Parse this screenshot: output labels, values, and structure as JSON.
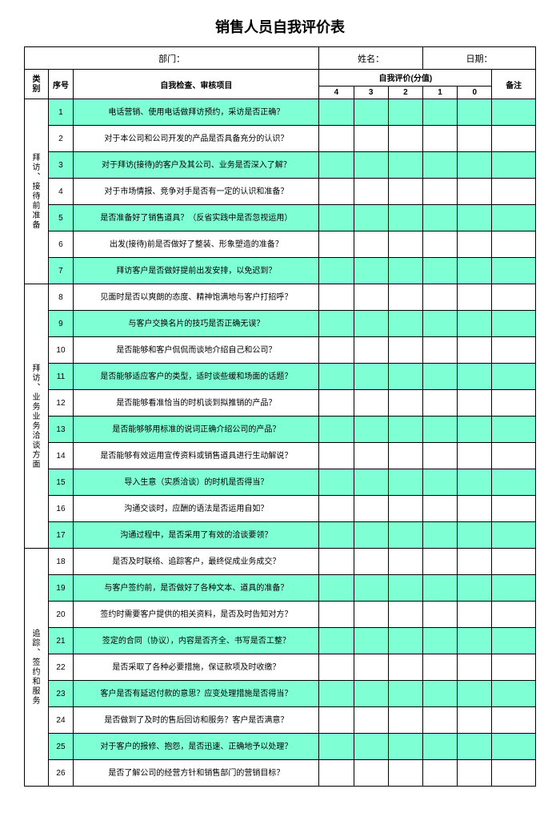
{
  "title": "销售人员自我评价表",
  "header": {
    "dept_label": "部门：",
    "name_label": "姓名：",
    "date_label": "日期："
  },
  "columns": {
    "category": "类别",
    "seq": "序号",
    "item": "自我检查、审核项目",
    "eval_header": "自我评价(分值)",
    "scores": [
      "4",
      "3",
      "2",
      "1",
      "0"
    ],
    "remark": "备注"
  },
  "colors": {
    "highlight": "#7fffd4",
    "border": "#000000",
    "background": "#ffffff"
  },
  "sections": [
    {
      "category": "拜访、接待前准备",
      "rows": [
        {
          "n": "1",
          "text": "电话营销、使用电话做拜访预约，采访是否正确？",
          "hl": true
        },
        {
          "n": "2",
          "text": "对于本公司和公司开发的产品是否具备充分的认识？",
          "hl": false
        },
        {
          "n": "3",
          "text": "对于拜访(接待)的客户及其公司、业务是否深入了解？",
          "hl": true
        },
        {
          "n": "4",
          "text": "对于市场情报、竞争对手是否有一定的认识和准备？",
          "hl": false
        },
        {
          "n": "5",
          "text": "是否准备好了销售道具？（反省实践中是否忽视运用）",
          "hl": true
        },
        {
          "n": "6",
          "text": "出发(接待)前是否做好了整装、形象塑造的准备？",
          "hl": false
        },
        {
          "n": "7",
          "text": "拜访客户是否做好提前出发安排，以免迟到？",
          "hl": true
        }
      ]
    },
    {
      "category": "拜访、业务业务洽谈方面",
      "rows": [
        {
          "n": "8",
          "text": "见面时是否以爽朗的态度、精神饱满地与客户打招呼？",
          "hl": false
        },
        {
          "n": "9",
          "text": "与客户交换名片的技巧是否正确无误？",
          "hl": true
        },
        {
          "n": "10",
          "text": "是否能够和客户侃侃而谈地介绍自己和公司？",
          "hl": false
        },
        {
          "n": "11",
          "text": "是否能够适应客户的类型，适时谈些缓和场面的话题？",
          "hl": true
        },
        {
          "n": "12",
          "text": "是否能够看准恰当的时机谈到拟推销的产品？",
          "hl": false
        },
        {
          "n": "13",
          "text": "是否能够够用标准的说词正确介绍公司的产品？",
          "hl": true
        },
        {
          "n": "14",
          "text": "是否能够有效运用宣传资料或销售道具进行生动解说？",
          "hl": false
        },
        {
          "n": "15",
          "text": "导入生意（实质洽谈）的时机是否得当？",
          "hl": true
        },
        {
          "n": "16",
          "text": "沟通交谈时，应酬的语法是否运用自如？",
          "hl": false
        },
        {
          "n": "17",
          "text": "沟通过程中，是否采用了有效的洽谈要领？",
          "hl": true
        }
      ]
    },
    {
      "category": "追踪、签约和服务",
      "rows": [
        {
          "n": "18",
          "text": "是否及时联络、追踪客户，最终促成业务成交？",
          "hl": false
        },
        {
          "n": "19",
          "text": "与客户签约前，是否做好了各种文本、道具的准备？",
          "hl": true
        },
        {
          "n": "20",
          "text": "签约时需要客户提供的相关资料，是否及时告知对方？",
          "hl": false
        },
        {
          "n": "21",
          "text": "签定的合同（协议），内容是否齐全、书写是否工整？",
          "hl": true
        },
        {
          "n": "22",
          "text": "是否采取了各种必要措施，保证款项及时收缴？",
          "hl": false
        },
        {
          "n": "23",
          "text": "客户是否有延迟付款的意思？应变处理措施是否得当？",
          "hl": true
        },
        {
          "n": "24",
          "text": "是否做到了及时的售后回访和服务？客户是否满意？",
          "hl": false
        },
        {
          "n": "25",
          "text": "对于客户的报修、抱怨，是否迅速、正确地予以处理？",
          "hl": true
        },
        {
          "n": "26",
          "text": "是否了解公司的经营方针和销售部门的营销目标？",
          "hl": false
        }
      ]
    }
  ]
}
